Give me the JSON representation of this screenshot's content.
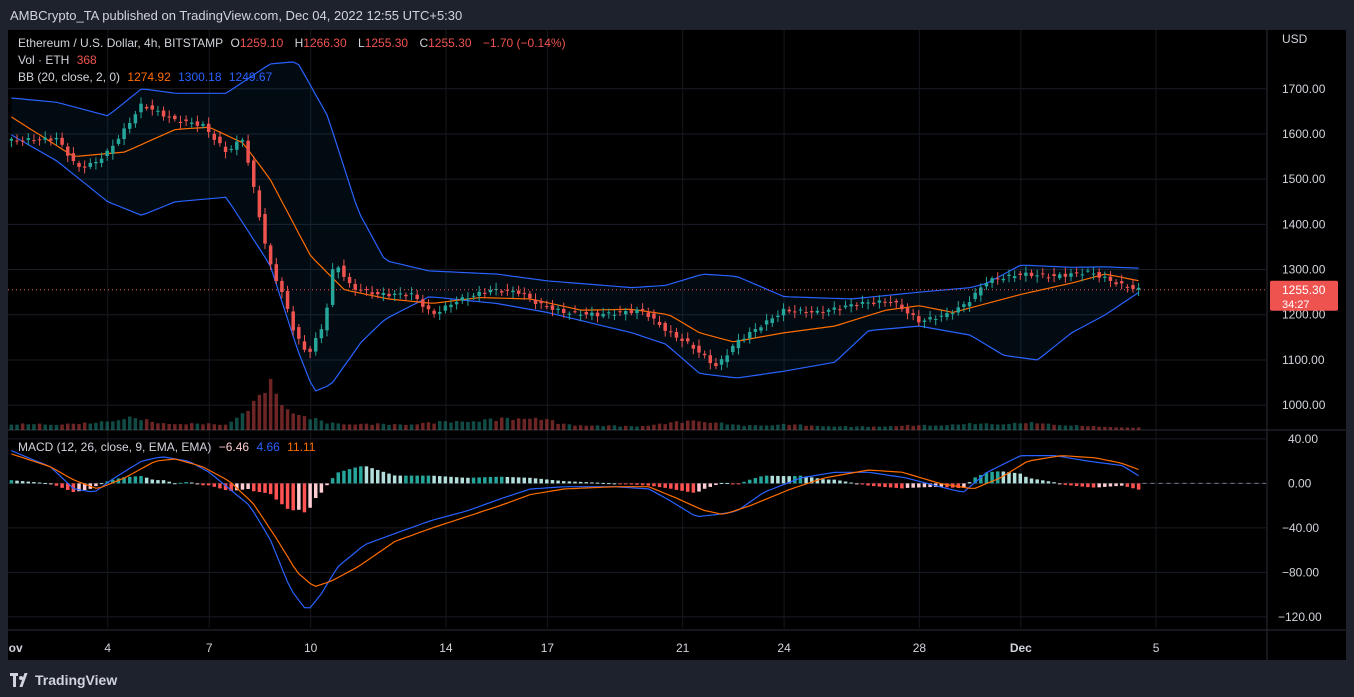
{
  "header": {
    "publisher_line": "AMBCrypto_TA published on TradingView.com, Dec 04, 2022 12:55 UTC+5:30"
  },
  "footer": {
    "brand": "TradingView"
  },
  "colors": {
    "up": "#26a69a",
    "down": "#ef5350",
    "bb_basis": "#ff6d00",
    "bb_band": "#2962ff",
    "macd_line": "#2962ff",
    "signal_line": "#ff6d00",
    "hist_up_strong": "#26a69a",
    "hist_up_weak": "#b2dfdb",
    "hist_down_strong": "#ff5252",
    "hist_down_weak": "#ffcdd2"
  },
  "legend": {
    "symbol": "Ethereum / U.S. Dollar, 4h, BITSTAMP",
    "o_label": "O",
    "o_value": "1259.10",
    "h_label": "H",
    "h_value": "1266.30",
    "l_label": "L",
    "l_value": "1255.30",
    "c_label": "C",
    "c_value": "1255.30",
    "change": "−1.70 (−0.14%)",
    "vol_label": "Vol · ETH",
    "vol_value": "368",
    "bb_label": "BB (20, close, 2, 0)",
    "bb_basis": "1274.92",
    "bb_upper": "1300.18",
    "bb_lower": "1249.67",
    "macd_label": "MACD (12, 26, close, 9, EMA, EMA)",
    "macd_hist": "−6.46",
    "macd_line": "4.66",
    "macd_signal": "11.11"
  },
  "chart_data": [
    {
      "type": "candlestick",
      "title": "Ethereum / U.S. Dollar, 4h, BITSTAMP",
      "y_axis_unit": "USD",
      "y_ticks": [
        "1700.00",
        "1600.00",
        "1500.00",
        "1400.00",
        "1300.00",
        "1200.00",
        "1100.00",
        "1000.00"
      ],
      "y_tick_values": [
        1700,
        1600,
        1500,
        1400,
        1300,
        1200,
        1100,
        1000
      ],
      "ylim": [
        945,
        1830
      ],
      "x_ticks": [
        "Nov",
        "4",
        "7",
        "10",
        "14",
        "17",
        "21",
        "24",
        "28",
        "Dec",
        "5"
      ],
      "x_tick_days": [
        1,
        4,
        7,
        10,
        14,
        17,
        21,
        24,
        28,
        31,
        35
      ],
      "xlim_days": [
        1.05,
        38.25
      ],
      "last_price": "1255.30",
      "last_price_value": 1255.3,
      "countdown": "34:27",
      "close_anchors_day_price": [
        [
          1.1,
          1585
        ],
        [
          2.5,
          1590
        ],
        [
          3.1,
          1525
        ],
        [
          3.6,
          1535
        ],
        [
          4.0,
          1560
        ],
        [
          4.5,
          1610
        ],
        [
          5.0,
          1665
        ],
        [
          6.0,
          1630
        ],
        [
          6.8,
          1620
        ],
        [
          7.5,
          1560
        ],
        [
          8.0,
          1590
        ],
        [
          8.4,
          1450
        ],
        [
          8.75,
          1320
        ],
        [
          9.2,
          1240
        ],
        [
          9.5,
          1165
        ],
        [
          9.9,
          1110
        ],
        [
          10.4,
          1180
        ],
        [
          10.7,
          1320
        ],
        [
          11.2,
          1260
        ],
        [
          12.0,
          1245
        ],
        [
          13.0,
          1245
        ],
        [
          13.6,
          1200
        ],
        [
          14.3,
          1230
        ],
        [
          15.3,
          1255
        ],
        [
          16.2,
          1250
        ],
        [
          16.7,
          1225
        ],
        [
          17.5,
          1205
        ],
        [
          18.5,
          1200
        ],
        [
          19.8,
          1210
        ],
        [
          20.6,
          1160
        ],
        [
          21.2,
          1135
        ],
        [
          22.0,
          1085
        ],
        [
          22.6,
          1140
        ],
        [
          23.4,
          1180
        ],
        [
          24.0,
          1210
        ],
        [
          25.0,
          1205
        ],
        [
          26.2,
          1225
        ],
        [
          27.2,
          1230
        ],
        [
          28.0,
          1185
        ],
        [
          28.8,
          1200
        ],
        [
          29.4,
          1225
        ],
        [
          30.0,
          1275
        ],
        [
          31.0,
          1290
        ],
        [
          32.0,
          1285
        ],
        [
          33.0,
          1295
        ],
        [
          34.0,
          1265
        ],
        [
          34.5,
          1255.3
        ]
      ],
      "bb_basis_anchors": [
        [
          1.1,
          1640
        ],
        [
          3.0,
          1550
        ],
        [
          4.5,
          1560
        ],
        [
          6.0,
          1610
        ],
        [
          7.0,
          1615
        ],
        [
          8.0,
          1580
        ],
        [
          8.8,
          1500
        ],
        [
          10.0,
          1330
        ],
        [
          11.0,
          1255
        ],
        [
          12.3,
          1235
        ],
        [
          13.6,
          1225
        ],
        [
          15.0,
          1238
        ],
        [
          16.5,
          1235
        ],
        [
          18.0,
          1210
        ],
        [
          19.5,
          1212
        ],
        [
          20.6,
          1200
        ],
        [
          21.5,
          1160
        ],
        [
          22.5,
          1140
        ],
        [
          24.0,
          1160
        ],
        [
          25.5,
          1175
        ],
        [
          27.0,
          1210
        ],
        [
          28.0,
          1220
        ],
        [
          29.0,
          1205
        ],
        [
          30.0,
          1225
        ],
        [
          31.0,
          1245
        ],
        [
          32.5,
          1270
        ],
        [
          33.5,
          1290
        ],
        [
          34.5,
          1275
        ]
      ],
      "bb_upper_anchors": [
        [
          1.1,
          1680
        ],
        [
          2.5,
          1670
        ],
        [
          4.0,
          1640
        ],
        [
          5.0,
          1700
        ],
        [
          6.0,
          1690
        ],
        [
          7.5,
          1690
        ],
        [
          8.8,
          1755
        ],
        [
          9.6,
          1760
        ],
        [
          10.5,
          1640
        ],
        [
          11.4,
          1430
        ],
        [
          12.2,
          1320
        ],
        [
          13.5,
          1297
        ],
        [
          15.5,
          1290
        ],
        [
          17.0,
          1275
        ],
        [
          19.5,
          1260
        ],
        [
          20.5,
          1265
        ],
        [
          21.6,
          1290
        ],
        [
          22.6,
          1285
        ],
        [
          24.0,
          1240
        ],
        [
          26.0,
          1235
        ],
        [
          28.0,
          1250
        ],
        [
          29.5,
          1260
        ],
        [
          30.0,
          1270
        ],
        [
          31.0,
          1310
        ],
        [
          32.5,
          1305
        ],
        [
          33.5,
          1306
        ],
        [
          34.5,
          1303
        ]
      ],
      "bb_lower_anchors": [
        [
          1.1,
          1600
        ],
        [
          2.5,
          1540
        ],
        [
          4.0,
          1450
        ],
        [
          5.0,
          1420
        ],
        [
          6.0,
          1450
        ],
        [
          7.5,
          1460
        ],
        [
          8.8,
          1310
        ],
        [
          9.6,
          1125
        ],
        [
          10.1,
          1030
        ],
        [
          10.6,
          1045
        ],
        [
          11.5,
          1140
        ],
        [
          12.2,
          1190
        ],
        [
          13.5,
          1240
        ],
        [
          15.5,
          1225
        ],
        [
          17.0,
          1205
        ],
        [
          19.5,
          1160
        ],
        [
          20.5,
          1135
        ],
        [
          21.5,
          1070
        ],
        [
          22.6,
          1060
        ],
        [
          24.0,
          1075
        ],
        [
          25.5,
          1095
        ],
        [
          26.5,
          1165
        ],
        [
          28.0,
          1175
        ],
        [
          29.5,
          1155
        ],
        [
          30.5,
          1110
        ],
        [
          31.5,
          1100
        ],
        [
          32.5,
          1160
        ],
        [
          33.5,
          1200
        ],
        [
          34.5,
          1250
        ]
      ],
      "bb_latest": {
        "basis": 1274.92,
        "upper": 1300.18,
        "lower": 1249.67
      }
    },
    {
      "type": "bar",
      "title": "Vol · ETH",
      "series_name": "Volume",
      "latest": 368,
      "shape_anchors_day_value": [
        [
          1.1,
          0.12
        ],
        [
          3.5,
          0.14
        ],
        [
          4.6,
          0.28
        ],
        [
          5.5,
          0.15
        ],
        [
          7.5,
          0.12
        ],
        [
          8.3,
          0.55
        ],
        [
          8.8,
          1.0
        ],
        [
          9.2,
          0.55
        ],
        [
          9.6,
          0.35
        ],
        [
          10.5,
          0.15
        ],
        [
          12.5,
          0.12
        ],
        [
          16.7,
          0.28
        ],
        [
          17.5,
          0.12
        ],
        [
          19.5,
          0.08
        ],
        [
          20.6,
          0.15
        ],
        [
          21.5,
          0.22
        ],
        [
          22.6,
          0.1
        ],
        [
          24.0,
          0.12
        ],
        [
          26.0,
          0.07
        ],
        [
          28.0,
          0.1
        ],
        [
          30.0,
          0.14
        ],
        [
          31.5,
          0.15
        ],
        [
          33.0,
          0.08
        ],
        [
          34.5,
          0.05
        ]
      ]
    },
    {
      "type": "line",
      "title": "MACD (12, 26, close, 9, EMA, EMA)",
      "y_ticks": [
        "40.00",
        "0.00",
        "−40.00",
        "−80.00",
        "−120.00"
      ],
      "y_tick_values": [
        40,
        0,
        -40,
        -80,
        -120
      ],
      "ylim": [
        -130,
        48
      ],
      "latest": {
        "histogram": -6.46,
        "macd": 4.66,
        "signal": 11.11
      },
      "macd_line_anchors": [
        [
          1.1,
          30
        ],
        [
          2.3,
          15
        ],
        [
          3.0,
          -5
        ],
        [
          3.6,
          -8
        ],
        [
          4.2,
          5
        ],
        [
          5.0,
          20
        ],
        [
          5.6,
          24
        ],
        [
          6.4,
          20
        ],
        [
          7.0,
          10
        ],
        [
          7.6,
          -5
        ],
        [
          8.2,
          -20
        ],
        [
          8.8,
          -50
        ],
        [
          9.4,
          -95
        ],
        [
          9.9,
          -115
        ],
        [
          10.3,
          -100
        ],
        [
          10.8,
          -75
        ],
        [
          11.6,
          -55
        ],
        [
          12.5,
          -45
        ],
        [
          13.6,
          -33
        ],
        [
          14.6,
          -25
        ],
        [
          15.6,
          -14
        ],
        [
          16.5,
          -5
        ],
        [
          17.5,
          -3
        ],
        [
          19.0,
          -3
        ],
        [
          20.0,
          -5
        ],
        [
          20.6,
          -15
        ],
        [
          21.4,
          -30
        ],
        [
          22.0,
          -28
        ],
        [
          22.6,
          -25
        ],
        [
          23.4,
          -8
        ],
        [
          24.5,
          5
        ],
        [
          25.5,
          10
        ],
        [
          26.5,
          10
        ],
        [
          27.6,
          5
        ],
        [
          28.6,
          -3
        ],
        [
          29.3,
          -8
        ],
        [
          30.0,
          10
        ],
        [
          31.0,
          25
        ],
        [
          32.0,
          25
        ],
        [
          33.0,
          20
        ],
        [
          34.0,
          16
        ],
        [
          34.6,
          4.66
        ]
      ],
      "signal_line_anchors": [
        [
          1.1,
          27
        ],
        [
          2.3,
          15
        ],
        [
          3.0,
          3
        ],
        [
          3.7,
          -5
        ],
        [
          4.5,
          5
        ],
        [
          5.4,
          20
        ],
        [
          6.0,
          22
        ],
        [
          6.8,
          15
        ],
        [
          7.6,
          2
        ],
        [
          8.3,
          -18
        ],
        [
          9.0,
          -50
        ],
        [
          9.6,
          -80
        ],
        [
          10.1,
          -93
        ],
        [
          10.6,
          -88
        ],
        [
          11.4,
          -75
        ],
        [
          12.5,
          -52
        ],
        [
          13.6,
          -40
        ],
        [
          14.6,
          -30
        ],
        [
          15.6,
          -20
        ],
        [
          16.5,
          -10
        ],
        [
          17.5,
          -5
        ],
        [
          19.0,
          -3
        ],
        [
          20.0,
          -3
        ],
        [
          20.8,
          -13
        ],
        [
          21.6,
          -24
        ],
        [
          22.2,
          -28
        ],
        [
          23.0,
          -20
        ],
        [
          24.2,
          -5
        ],
        [
          25.2,
          5
        ],
        [
          26.5,
          12
        ],
        [
          27.5,
          10
        ],
        [
          28.6,
          0
        ],
        [
          29.6,
          -5
        ],
        [
          30.4,
          5
        ],
        [
          31.2,
          20
        ],
        [
          32.2,
          25
        ],
        [
          33.2,
          23
        ],
        [
          34.0,
          18
        ],
        [
          34.6,
          11.11
        ]
      ],
      "histogram_note": "histogram = macd - signal"
    }
  ]
}
